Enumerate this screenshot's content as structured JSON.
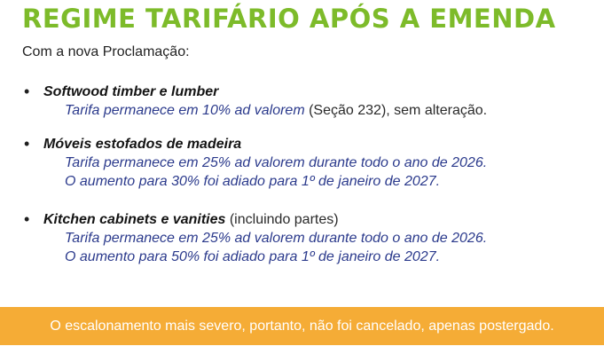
{
  "title": "REGIME TARIFÁRIO APÓS A EMENDA",
  "intro": "Com a nova Proclamação:",
  "items": [
    {
      "name": "Softwood timber e lumber",
      "suffix": "",
      "lines": [
        {
          "blue": "Tarifa permanece em 10% ad valorem",
          "plain": " (Seção 232), sem alteração."
        }
      ]
    },
    {
      "name": "Móveis estofados de madeira",
      "suffix": "",
      "lines": [
        {
          "blue": "Tarifa permanece em 25% ad valorem durante todo o ano de 2026.",
          "plain": ""
        },
        {
          "blue": "O aumento para 30% foi adiado para 1º de janeiro de 2027.",
          "plain": ""
        }
      ]
    },
    {
      "name": "Kitchen cabinets e vanities",
      "suffix": " (incluindo partes)",
      "lines": [
        {
          "blue": "Tarifa permanece em 25% ad valorem durante todo o ano de 2026.",
          "plain": ""
        },
        {
          "blue": "O aumento para 50% foi adiado para 1º de janeiro de 2027.",
          "plain": ""
        }
      ]
    }
  ],
  "bullet": "•",
  "banner": "O escalonamento mais severo, portanto, não foi cancelado, apenas postergado.",
  "colors": {
    "title": "#7dbb2a",
    "highlight_text": "#2b3a8c",
    "banner_background": "#f5ac36",
    "banner_text": "#ffffff"
  }
}
